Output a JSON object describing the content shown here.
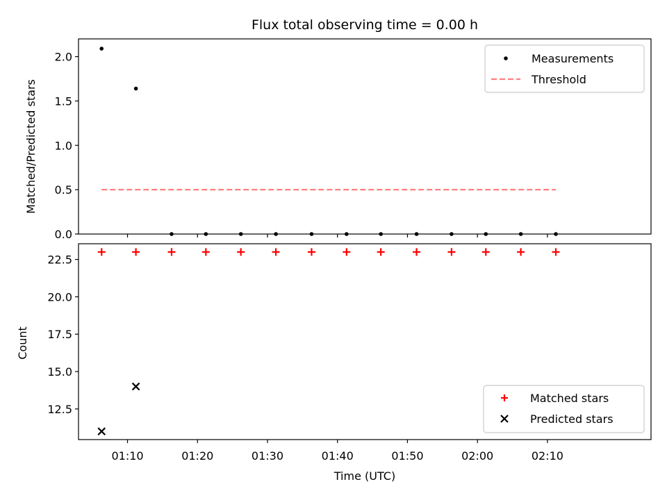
{
  "chart_data": {
    "title": "Flux total observing time = 0.00 h",
    "xlabel": "Time (UTC)",
    "x_tick_labels": [
      "01:10",
      "01:20",
      "01:30",
      "01:40",
      "01:50",
      "02:00",
      "02:10"
    ],
    "x_tick_minutes": [
      70,
      80,
      90,
      100,
      110,
      120,
      130
    ],
    "xlim_minutes": [
      63.0,
      144.8
    ],
    "x_minutes": [
      66.3,
      71.2,
      76.3,
      81.2,
      86.2,
      91.2,
      96.3,
      101.3,
      106.2,
      111.3,
      116.3,
      121.2,
      126.2,
      131.2
    ],
    "charts": [
      {
        "type": "scatter",
        "ylabel": "Matched/Predicted stars",
        "ylim": [
          0.0,
          2.2
        ],
        "y_ticks": [
          0.0,
          0.5,
          1.0,
          1.5,
          2.0
        ],
        "y_tick_labels": [
          "0.0",
          "0.5",
          "1.0",
          "1.5",
          "2.0"
        ],
        "legend_position": "top-right",
        "series": [
          {
            "name": "Measurements",
            "kind": "scatter",
            "marker": "dot",
            "color": "#000000",
            "values": [
              2.09,
              1.64,
              0.0,
              0.0,
              0.0,
              0.0,
              0.0,
              0.0,
              0.0,
              0.0,
              0.0,
              0.0,
              0.0,
              0.0
            ]
          },
          {
            "name": "Threshold",
            "kind": "dashed-line",
            "color": "#ff7f7f",
            "values": [
              0.5,
              0.5,
              0.5,
              0.5,
              0.5,
              0.5,
              0.5,
              0.5,
              0.5,
              0.5,
              0.5,
              0.5,
              0.5,
              0.5
            ]
          }
        ]
      },
      {
        "type": "scatter",
        "ylabel": "Count",
        "ylim": [
          10.45,
          23.55
        ],
        "y_ticks": [
          12.5,
          15.0,
          17.5,
          20.0,
          22.5
        ],
        "y_tick_labels": [
          "12.5",
          "15.0",
          "17.5",
          "20.0",
          "22.5"
        ],
        "legend_position": "bottom-right",
        "series": [
          {
            "name": "Matched stars",
            "kind": "scatter",
            "marker": "plus",
            "color": "#ff0000",
            "values": [
              23,
              23,
              23,
              23,
              23,
              23,
              23,
              23,
              23,
              23,
              23,
              23,
              23,
              23
            ]
          },
          {
            "name": "Predicted stars",
            "kind": "scatter",
            "marker": "x",
            "color": "#000000",
            "values": [
              11,
              14
            ]
          }
        ]
      }
    ]
  }
}
